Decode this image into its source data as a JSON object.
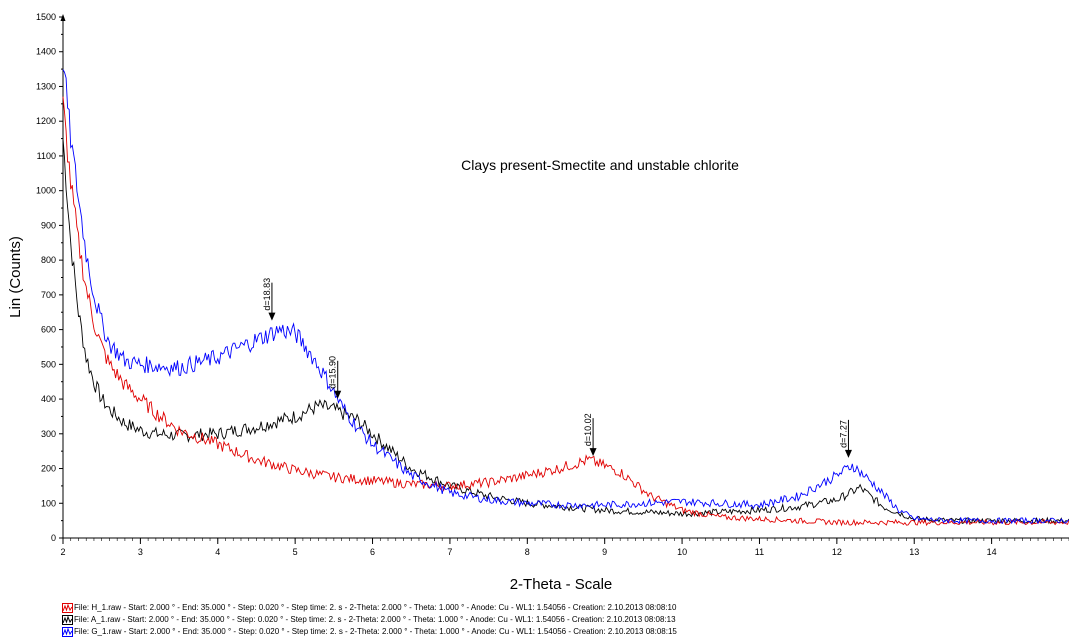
{
  "chart_data": {
    "type": "line",
    "title": "",
    "annotation": "Clays present-Smectite and unstable chlorite",
    "xlabel": "2-Theta - Scale",
    "ylabel": "Lin (Counts)",
    "xlim": [
      2,
      15
    ],
    "ylim": [
      0,
      1500
    ],
    "x_ticks": [
      2,
      3,
      4,
      5,
      6,
      7,
      8,
      9,
      10,
      11,
      12,
      13,
      14
    ],
    "y_ticks": [
      0,
      100,
      200,
      300,
      400,
      500,
      600,
      700,
      800,
      900,
      1000,
      1100,
      1200,
      1300,
      1400,
      1500
    ],
    "grid": false,
    "legend_position": "bottom-left",
    "series": [
      {
        "name": "File: H_1.raw - Start: 2.000 ° - End: 35.000 ° - Step: 0.020 ° - Step time: 2. s - 2-Theta: 2.000 ° - Theta: 1.000 ° - Anode: Cu - WL1: 1.54056 - Creation: 2.10.2013 08:08:10",
        "color": "#e00000",
        "x": [
          2.0,
          2.1,
          2.2,
          2.3,
          2.4,
          2.5,
          2.6,
          2.8,
          3.0,
          3.2,
          3.5,
          4.0,
          4.5,
          5.0,
          5.5,
          6.0,
          6.5,
          7.0,
          7.5,
          8.0,
          8.4,
          8.8,
          9.2,
          9.6,
          10.0,
          10.5,
          11.0,
          11.5,
          12.0,
          12.5,
          13.0,
          13.5,
          14.0,
          14.5,
          15.0
        ],
        "values": [
          1250,
          1020,
          850,
          720,
          620,
          550,
          500,
          440,
          400,
          360,
          310,
          270,
          225,
          195,
          175,
          165,
          155,
          150,
          160,
          180,
          200,
          225,
          190,
          120,
          80,
          60,
          55,
          50,
          45,
          45,
          45,
          45,
          45,
          45,
          45
        ]
      },
      {
        "name": "File: A_1.raw - Start: 2.000 ° - End: 35.000 ° - Step: 0.020 ° - Step time: 2. s - 2-Theta: 2.000 ° - Theta: 1.000 ° - Anode: Cu - WL1: 1.54056 - Creation: 2.10.2013 08:08:13",
        "color": "#000000",
        "x": [
          2.0,
          2.1,
          2.2,
          2.3,
          2.4,
          2.5,
          2.6,
          2.8,
          3.0,
          3.2,
          3.5,
          4.0,
          4.5,
          5.0,
          5.3,
          5.5,
          5.8,
          6.0,
          6.5,
          7.0,
          7.5,
          8.0,
          8.5,
          9.0,
          9.5,
          10.0,
          10.5,
          11.0,
          11.5,
          12.0,
          12.3,
          12.6,
          13.0,
          13.5,
          14.0,
          14.5,
          15.0
        ],
        "values": [
          1150,
          850,
          650,
          520,
          450,
          400,
          370,
          330,
          310,
          300,
          295,
          300,
          320,
          350,
          380,
          370,
          340,
          300,
          200,
          150,
          120,
          100,
          90,
          80,
          75,
          70,
          75,
          80,
          90,
          110,
          145,
          90,
          55,
          50,
          50,
          50,
          50
        ]
      },
      {
        "name": "File: G_1.raw - Start: 2.000 ° - End: 35.000 ° - Step: 0.020 ° - Step time: 2. s - 2-Theta: 2.000 ° - Theta: 1.000 ° - Anode: Cu - WL1: 1.54056 - Creation: 2.10.2013 08:08:15",
        "color": "#0000ff",
        "x": [
          2.0,
          2.1,
          2.2,
          2.3,
          2.4,
          2.5,
          2.6,
          2.8,
          3.0,
          3.5,
          4.0,
          4.5,
          4.8,
          5.0,
          5.2,
          5.4,
          5.6,
          5.8,
          6.0,
          6.5,
          7.0,
          7.5,
          8.0,
          8.5,
          9.0,
          9.5,
          10.0,
          10.5,
          11.0,
          11.5,
          12.0,
          12.2,
          12.5,
          12.8,
          13.0,
          13.5,
          14.0,
          14.5,
          15.0
        ],
        "values": [
          1380,
          1150,
          980,
          820,
          700,
          620,
          560,
          510,
          500,
          490,
          520,
          570,
          600,
          590,
          530,
          460,
          380,
          320,
          270,
          180,
          130,
          110,
          100,
          95,
          95,
          100,
          105,
          100,
          95,
          120,
          180,
          210,
          150,
          80,
          55,
          50,
          50,
          50,
          50
        ]
      }
    ],
    "peak_labels": [
      {
        "text": "d=18.83",
        "x": 4.7,
        "y": 620
      },
      {
        "text": "d=15.90",
        "x": 5.55,
        "y": 395
      },
      {
        "text": "d=10.02",
        "x": 8.85,
        "y": 230
      },
      {
        "text": "d=7.27",
        "x": 12.15,
        "y": 225
      }
    ]
  }
}
